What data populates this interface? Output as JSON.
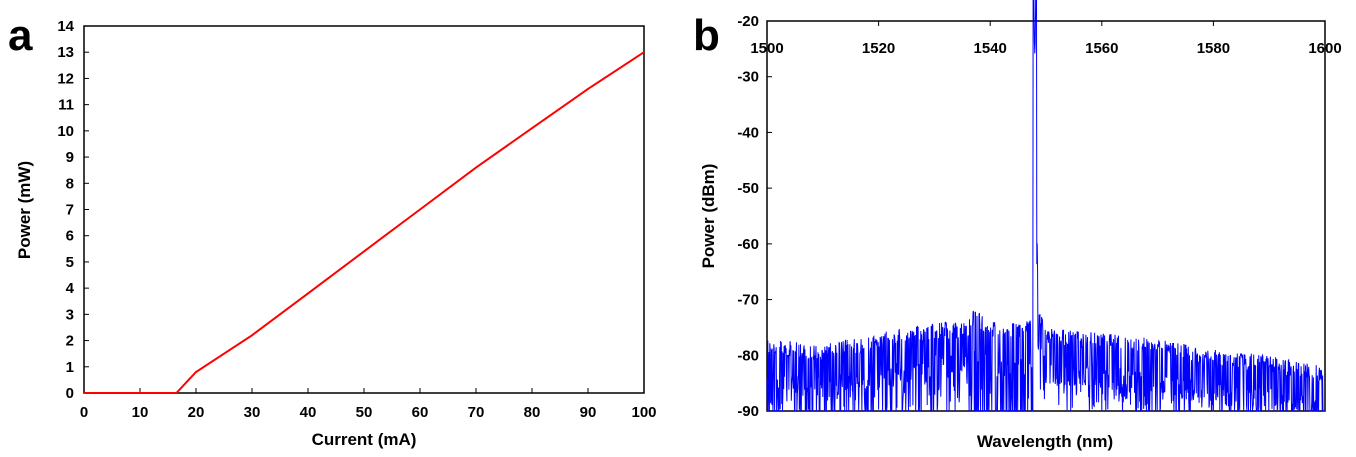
{
  "chart_data": [
    {
      "type": "line",
      "panel_label": "a",
      "xlabel": "Current (mA)",
      "ylabel": "Power (mW)",
      "xlim": [
        0,
        100
      ],
      "ylim": [
        0,
        14
      ],
      "x_ticks": [
        0,
        10,
        20,
        30,
        40,
        50,
        60,
        70,
        80,
        90,
        100
      ],
      "y_ticks": [
        0,
        1,
        2,
        3,
        4,
        5,
        6,
        7,
        8,
        9,
        10,
        11,
        12,
        13,
        14
      ],
      "grid": false,
      "legend": "none",
      "series": [
        {
          "color": "#ff0000",
          "x": [
            0,
            10,
            16.5,
            20,
            30,
            40,
            50,
            60,
            70,
            80,
            90,
            100
          ],
          "y": [
            0,
            0,
            0,
            0.8,
            2.2,
            3.8,
            5.4,
            7.0,
            8.6,
            10.1,
            11.6,
            13.0
          ]
        }
      ]
    },
    {
      "type": "line",
      "panel_label": "b",
      "xlabel": "Wavelength (nm)",
      "ylabel": "Power (dBm)",
      "xlim": [
        1500,
        1600
      ],
      "ylim": [
        -90,
        -20
      ],
      "x_ticks": [
        1500,
        1520,
        1540,
        1560,
        1580,
        1600
      ],
      "y_ticks": [
        -20,
        -30,
        -40,
        -50,
        -60,
        -70,
        -80,
        -90
      ],
      "x_axis_position": "top",
      "grid": false,
      "legend": "none",
      "series": [
        {
          "color": "#0000ff",
          "description_points": {
            "noise_floor_approx": [
              [
                1500,
                -80
              ],
              [
                1510,
                -81
              ],
              [
                1520,
                -79
              ],
              [
                1530,
                -77
              ],
              [
                1536,
                -77
              ],
              [
                1537,
                -74.5
              ],
              [
                1540,
                -77
              ],
              [
                1546,
                -77
              ],
              [
                1547.5,
                -76
              ],
              [
                1548,
                -26
              ],
              [
                1548.6,
                -74
              ],
              [
                1550,
                -78
              ],
              [
                1560,
                -79
              ],
              [
                1570,
                -80
              ],
              [
                1580,
                -82
              ],
              [
                1590,
                -83
              ],
              [
                1600,
                -85
              ]
            ],
            "peak": {
              "x": 1548,
              "y": -26
            }
          }
        }
      ]
    }
  ]
}
